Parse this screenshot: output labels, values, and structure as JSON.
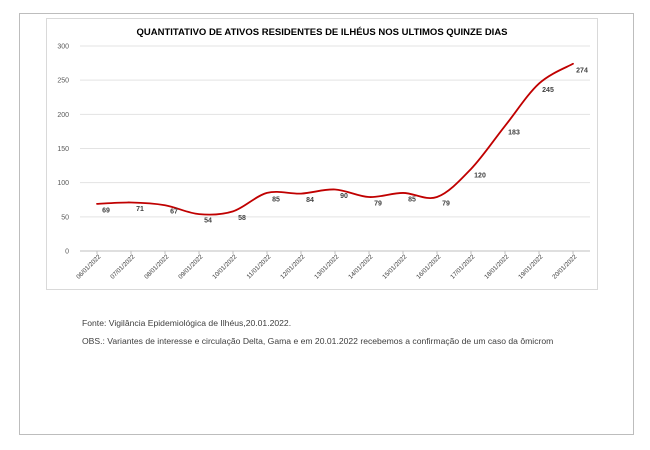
{
  "chart_data": {
    "type": "line",
    "title": "QUANTITATIVO DE ATIVOS RESIDENTES DE ILHÉUS NOS ULTIMOS QUINZE DIAS",
    "xlabel": "",
    "ylabel": "",
    "categories": [
      "06/01/2022",
      "07/01/2022",
      "08/01/2022",
      "09/01/2022",
      "10/01/2022",
      "11/01/2022",
      "12/01/2022",
      "13/01/2022",
      "14/01/2022",
      "15/01/2022",
      "16/01/2022",
      "17/01/2022",
      "18/01/2022",
      "19/01/2022",
      "20/01/2022"
    ],
    "values": [
      69,
      71,
      67,
      54,
      58,
      85,
      84,
      90,
      79,
      85,
      79,
      120,
      183,
      245,
      274
    ],
    "ylim": [
      0,
      300
    ],
    "yticks": [
      0,
      50,
      100,
      150,
      200,
      250,
      300
    ],
    "grid": true,
    "legend": "none",
    "line_color": "#c00000"
  },
  "footer": {
    "source": "Fonte: Vigilância Epidemiológica de Ilhéus,20.01.2022.",
    "obs": "OBS.: Variantes de interesse e circulação Delta, Gama  e em 20.01.2022 recebemos a confirmação de um caso da ômicrom"
  }
}
